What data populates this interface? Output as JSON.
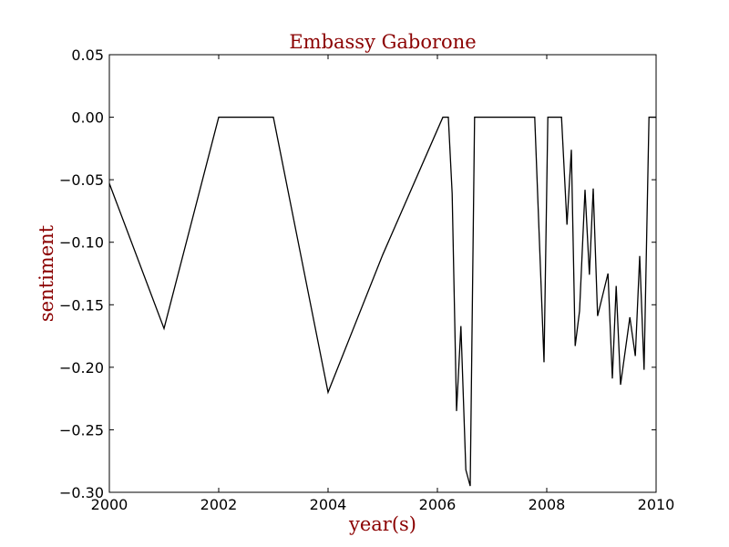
{
  "chart_data": {
    "type": "line",
    "title": "Embassy Gaborone",
    "xlabel": "year(s)",
    "ylabel": "sentiment",
    "xlim": [
      2000,
      2010
    ],
    "ylim": [
      -0.3,
      0.05
    ],
    "grid": false,
    "x_ticks": [
      2000,
      2002,
      2004,
      2006,
      2008,
      2010
    ],
    "x_tick_labels": [
      "2000",
      "2002",
      "2004",
      "2006",
      "2008",
      "2010"
    ],
    "y_ticks": [
      0.05,
      0.0,
      -0.05,
      -0.1,
      -0.15,
      -0.2,
      -0.25,
      -0.3
    ],
    "y_tick_labels": [
      "0.05",
      "0.00",
      "−0.05",
      "−0.10",
      "−0.15",
      "−0.20",
      "−0.25",
      "−0.30"
    ],
    "line_color": "#000000",
    "text_color": "#8b0000",
    "series": [
      {
        "x": [
          2000.0,
          2001.0,
          2002.0,
          2003.0,
          2004.0,
          2005.0,
          2006.1,
          2006.2,
          2006.27,
          2006.35,
          2006.43,
          2006.52,
          2006.6,
          2006.68,
          2007.05,
          2007.78,
          2007.95,
          2008.02,
          2008.27,
          2008.37,
          2008.45,
          2008.52,
          2008.6,
          2008.7,
          2008.78,
          2008.85,
          2008.93,
          2009.12,
          2009.2,
          2009.27,
          2009.35,
          2009.52,
          2009.62,
          2009.7,
          2009.78,
          2009.87,
          2010.0
        ],
        "y": [
          -0.053,
          -0.169,
          0.0,
          0.0,
          -0.22,
          -0.11,
          0.0,
          0.0,
          -0.061,
          -0.235,
          -0.167,
          -0.282,
          -0.295,
          0.0,
          0.0,
          0.0,
          -0.196,
          0.0,
          0.0,
          -0.086,
          -0.026,
          -0.183,
          -0.155,
          -0.058,
          -0.126,
          -0.057,
          -0.159,
          -0.125,
          -0.209,
          -0.135,
          -0.214,
          -0.16,
          -0.191,
          -0.111,
          -0.202,
          0.0,
          0.0
        ]
      }
    ]
  }
}
